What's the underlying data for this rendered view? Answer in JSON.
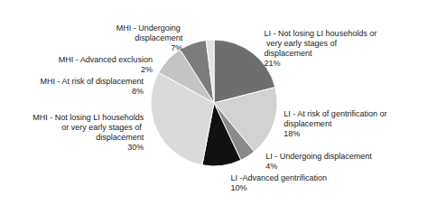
{
  "chart_data": {
    "type": "pie",
    "categories": [
      "LI - Not losing LI households or very early stages of displacement",
      "LI - At risk of gentrification or displacement",
      "LI - Undergoing displacement",
      "LI -Advanced gentrification",
      "MHI - Not losing LI households or very early stages of displacement",
      "MHI - At risk of displacement",
      "MHI - Undergoing displacement",
      "MHI - Advanced exclusion"
    ],
    "values": [
      21,
      18,
      4,
      10,
      30,
      8,
      7,
      2
    ],
    "value_labels": [
      "21%",
      "18%",
      "4%",
      "10%",
      "30%",
      "8%",
      "7%",
      "2%"
    ],
    "colors": [
      "#6e6e6e",
      "#d2d2d2",
      "#8a8a8a",
      "#111111",
      "#dadada",
      "#c4c4c4",
      "#7c7c7c",
      "#e2e2e2"
    ],
    "data_labels": true
  }
}
